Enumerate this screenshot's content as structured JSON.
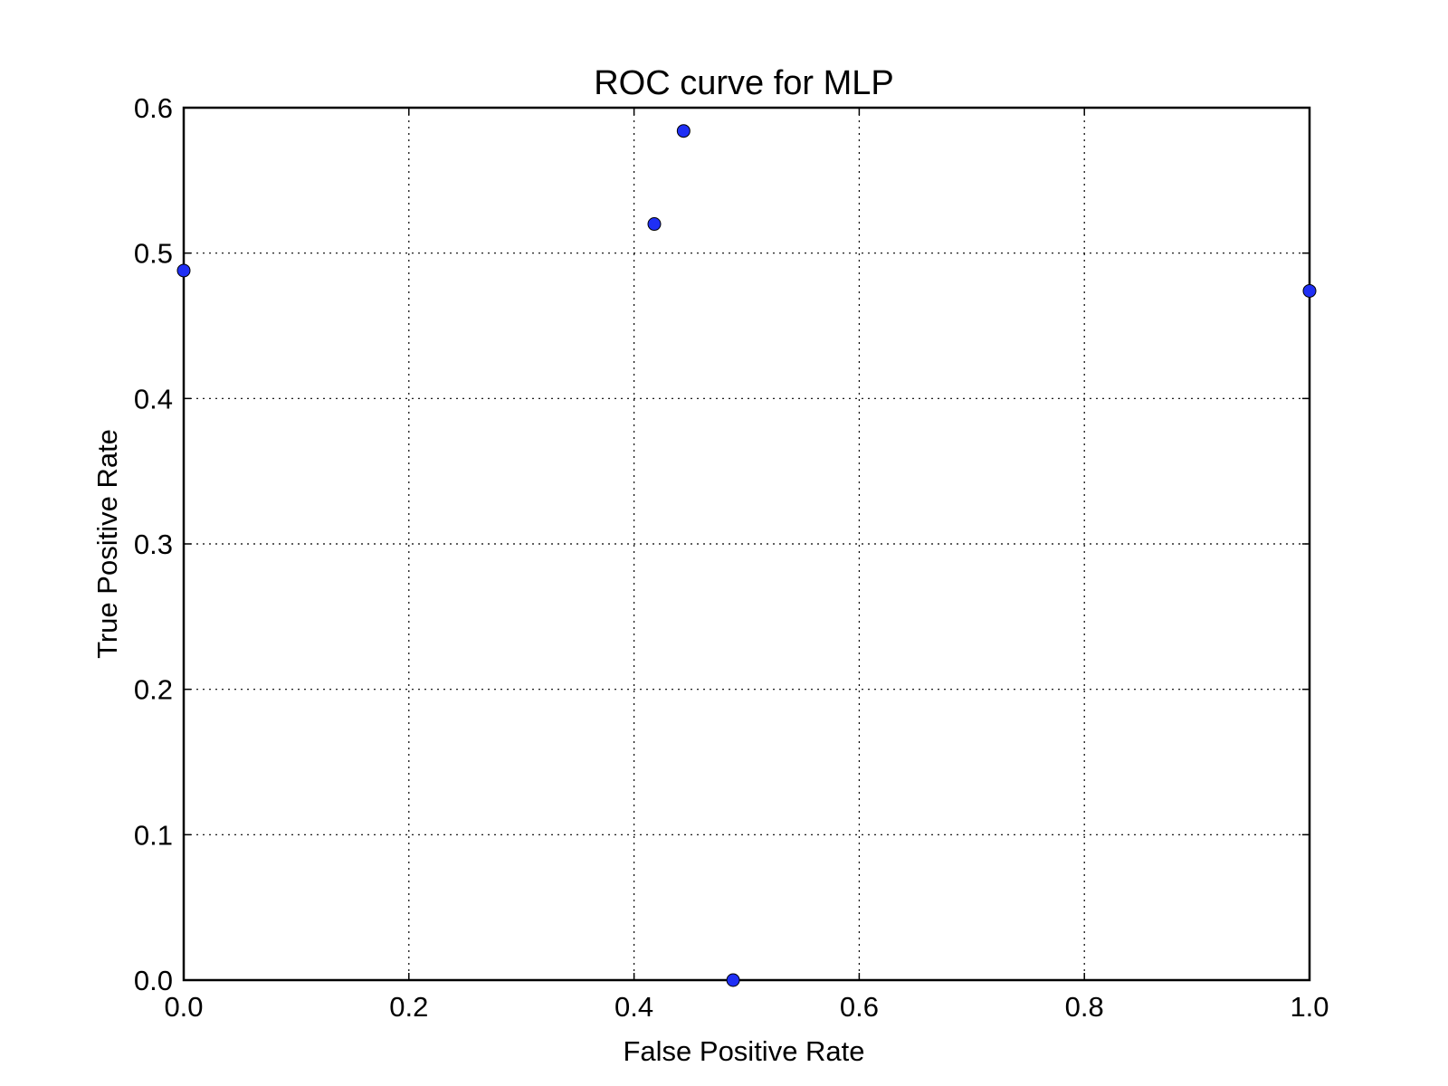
{
  "chart_data": {
    "type": "scatter",
    "title": "ROC curve for MLP",
    "xlabel": "False Positive Rate",
    "ylabel": "True Positive Rate",
    "xlim": [
      0.0,
      1.0
    ],
    "ylim": [
      0.0,
      0.6
    ],
    "xticks": [
      0.0,
      0.2,
      0.4,
      0.6,
      0.8,
      1.0
    ],
    "xtick_labels": [
      "0.0",
      "0.2",
      "0.4",
      "0.6",
      "0.8",
      "1.0"
    ],
    "yticks": [
      0.0,
      0.1,
      0.2,
      0.3,
      0.4,
      0.5,
      0.6
    ],
    "ytick_labels": [
      "0.0",
      "0.1",
      "0.2",
      "0.3",
      "0.4",
      "0.5",
      "0.6"
    ],
    "grid": true,
    "marker_color": "#1f2ff5",
    "points": [
      {
        "x": 0.0,
        "y": 0.488
      },
      {
        "x": 0.418,
        "y": 0.52
      },
      {
        "x": 0.444,
        "y": 0.584
      },
      {
        "x": 0.488,
        "y": 0.0
      },
      {
        "x": 1.0,
        "y": 0.474
      }
    ]
  }
}
